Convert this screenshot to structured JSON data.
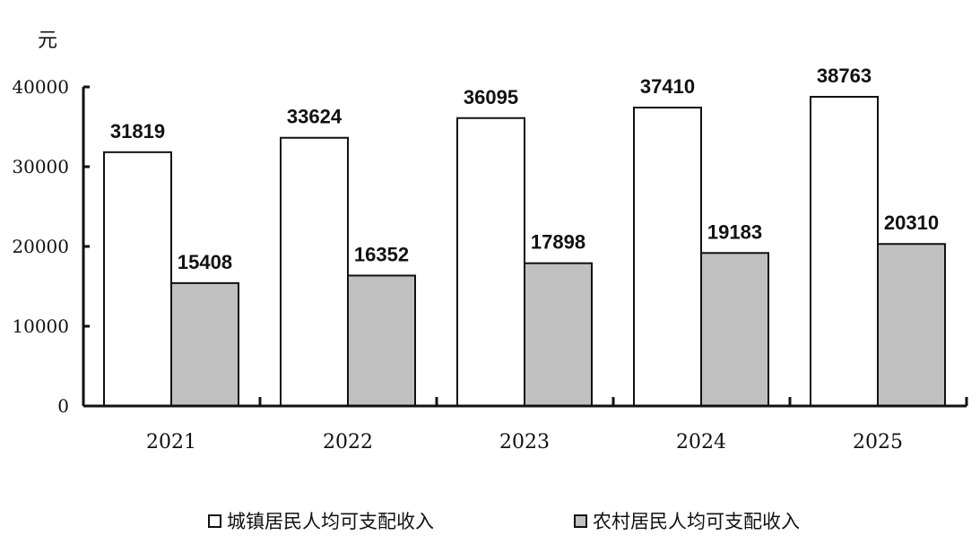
{
  "chart_data": {
    "type": "bar",
    "unit": "元",
    "categories": [
      "2021",
      "2022",
      "2023",
      "2024",
      "2025"
    ],
    "series": [
      {
        "name": "城镇居民人均可支配收入",
        "values": [
          31819,
          33624,
          36095,
          37410,
          38763
        ],
        "color": "#ffffff"
      },
      {
        "name": "农村居民人均可支配收入",
        "values": [
          15408,
          16352,
          17898,
          19183,
          20310
        ],
        "color": "#c0c0c0"
      }
    ],
    "ylim": [
      0,
      40000
    ],
    "yticks": [
      "0",
      "10000",
      "20000",
      "30000",
      "40000"
    ],
    "grid": false,
    "legend_position": "bottom"
  }
}
